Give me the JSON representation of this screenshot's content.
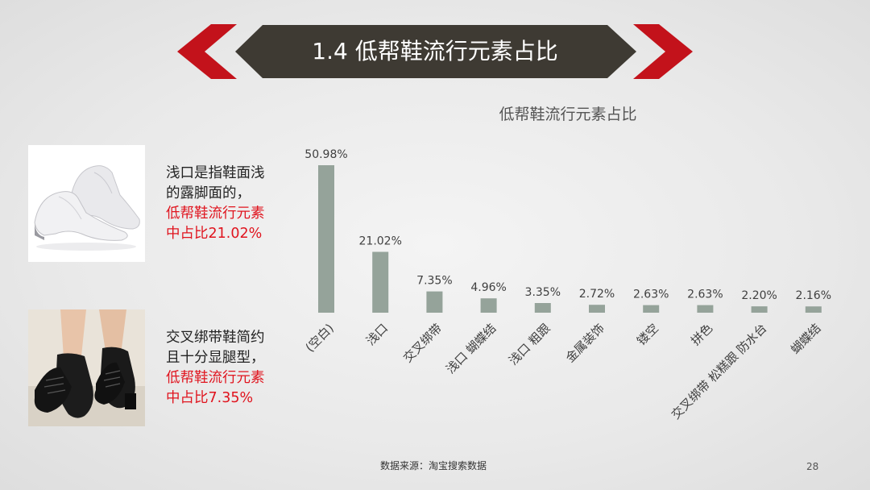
{
  "slide": {
    "title": "1.4 低帮鞋流行元素占比",
    "source": "数据来源：淘宝搜索数据",
    "page_number": "28",
    "accent_color": "#c3121b",
    "banner_color": "#3e3a33"
  },
  "notes": [
    {
      "line1": "浅口是指鞋面浅",
      "line2": "的露脚面的，",
      "red1": "低帮鞋流行元素",
      "red2": "中占比21.02%"
    },
    {
      "line1": "交叉绑带鞋简约",
      "line2": "且十分显腿型，",
      "red1": "低帮鞋流行元素",
      "red2": "中占比7.35%"
    }
  ],
  "images": [
    {
      "icon": "white-low-heel-shoes-photo"
    },
    {
      "icon": "black-lace-up-shoes-photo"
    }
  ],
  "chart_data": {
    "type": "bar",
    "title": "低帮鞋流行元素占比",
    "categories": [
      "(空白)",
      "浅口",
      "交叉绑带",
      "浅口 蝴蝶结",
      "浅口 粗跟",
      "金属装饰",
      "镂空",
      "拼色",
      "交叉绑带 松糕跟 防水台",
      "蝴蝶结"
    ],
    "values": [
      50.98,
      21.02,
      7.35,
      4.96,
      3.35,
      2.72,
      2.63,
      2.63,
      2.2,
      2.16
    ],
    "data_labels": [
      "50.98%",
      "21.02%",
      "7.35%",
      "4.96%",
      "3.35%",
      "2.72%",
      "2.63%",
      "2.63%",
      "2.20%",
      "2.16%"
    ],
    "bar_color": "#95a39a",
    "ylim": [
      0,
      50.98
    ],
    "grid": false,
    "legend": "none"
  }
}
